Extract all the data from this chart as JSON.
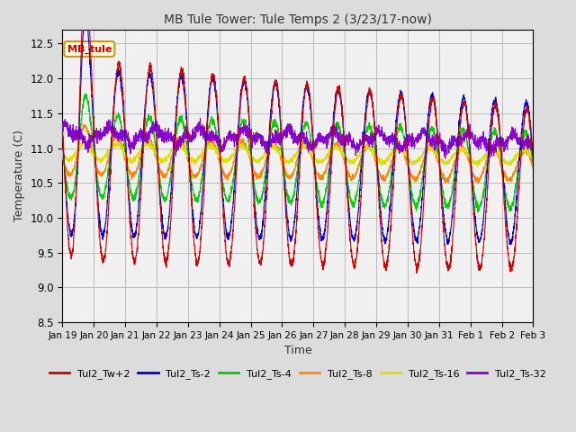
{
  "title": "MB Tule Tower: Tule Temps 2 (3/23/17-now)",
  "xlabel": "Time",
  "ylabel": "Temperature (C)",
  "ylim": [
    8.5,
    12.7
  ],
  "background_color": "#dcdcdc",
  "plot_bg_color": "#f0f0f0",
  "legend_label": "MB_tule",
  "series_colors": {
    "Tul2_Tw+2": "#cc0000",
    "Tul2_Ts-2": "#0000cc",
    "Tul2_Ts-4": "#00cc00",
    "Tul2_Ts-8": "#ff8800",
    "Tul2_Ts-16": "#dddd00",
    "Tul2_Ts-32": "#8800cc"
  },
  "tick_labels": [
    "Jan 19",
    "Jan 20",
    "Jan 21",
    "Jan 22",
    "Jan 23",
    "Jan 24",
    "Jan 25",
    "Jan 26",
    "Jan 27",
    "Jan 28",
    "Jan 29",
    "Jan 30",
    "Jan 31",
    "Feb 1",
    "Feb 2",
    "Feb 3"
  ],
  "grid_color": "#bbbbbb"
}
